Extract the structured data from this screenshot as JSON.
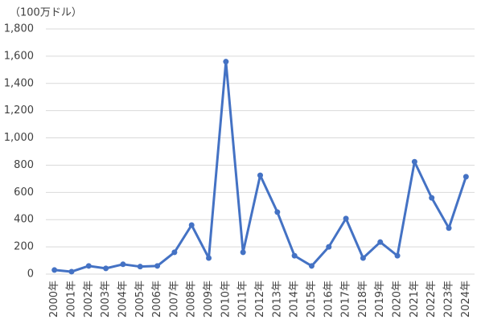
{
  "chart_data": {
    "type": "line",
    "unit_label": "（100万ドル）",
    "categories": [
      "2000年",
      "2001年",
      "2002年",
      "2003年",
      "2004年",
      "2005年",
      "2006年",
      "2007年",
      "2008年",
      "2009年",
      "2010年",
      "2011年",
      "2012年",
      "2013年",
      "2014年",
      "2015年",
      "2016年",
      "2017年",
      "2018年",
      "2019年",
      "2020年",
      "2021年",
      "2022年",
      "2023年",
      "2024年"
    ],
    "values": [
      30,
      18,
      60,
      42,
      72,
      55,
      60,
      160,
      360,
      118,
      1560,
      160,
      725,
      455,
      135,
      60,
      200,
      408,
      118,
      235,
      135,
      825,
      560,
      338,
      715
    ],
    "color": "#4472c4",
    "ylim": [
      0,
      1800
    ],
    "yticks": [
      0,
      200,
      400,
      600,
      800,
      {
        "value": 1000,
        "label": "1,000"
      },
      {
        "value": 1200,
        "label": "1,200"
      },
      {
        "value": 1400,
        "label": "1,400"
      },
      {
        "value": 1600,
        "label": "1,600"
      },
      {
        "value": 1800,
        "label": "1,800"
      }
    ],
    "grid": true
  }
}
